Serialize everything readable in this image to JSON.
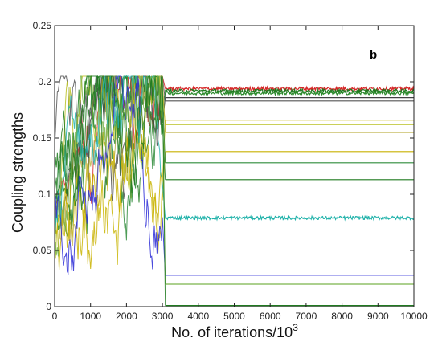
{
  "chart_data": {
    "type": "line",
    "panel_label": "b",
    "xlabel": "No. of iterations/10",
    "xlabel_superscript": "3",
    "ylabel": "Coupling strengths",
    "xlim": [
      0,
      10000
    ],
    "ylim": [
      0,
      0.25
    ],
    "x_ticks": [
      0,
      1000,
      2000,
      3000,
      4000,
      5000,
      6000,
      7000,
      8000,
      9000,
      10000
    ],
    "y_ticks": [
      0,
      0.05,
      0.1,
      0.15,
      0.2,
      0.25
    ],
    "x_tick_labels": [
      "0",
      "1000",
      "2000",
      "3000",
      "4000",
      "5000",
      "6000",
      "7000",
      "8000",
      "9000",
      "10000"
    ],
    "y_tick_labels": [
      "0",
      "0.05",
      "0.1",
      "0.15",
      "0.2",
      "0.25"
    ],
    "grid": false,
    "legend": "none",
    "transition_x": 3000,
    "steady_state_levels": [
      {
        "value": 0.194,
        "color": "#d62728",
        "noisy": true
      },
      {
        "value": 0.192,
        "color": "#1f7a1f",
        "noisy": true
      },
      {
        "value": 0.19,
        "color": "#2a8a2a",
        "noisy": true
      },
      {
        "value": 0.186,
        "color": "#444444",
        "noisy": false
      },
      {
        "value": 0.183,
        "color": "#555555",
        "noisy": false
      },
      {
        "value": 0.166,
        "color": "#c8b400",
        "noisy": false
      },
      {
        "value": 0.162,
        "color": "#b8c020",
        "noisy": false
      },
      {
        "value": 0.155,
        "color": "#bfb24a",
        "noisy": false
      },
      {
        "value": 0.138,
        "color": "#c9b100",
        "noisy": false
      },
      {
        "value": 0.128,
        "color": "#2e8b3a",
        "noisy": false
      },
      {
        "value": 0.113,
        "color": "#1f7a1f",
        "noisy": false
      },
      {
        "value": 0.079,
        "color": "#20b2aa",
        "noisy": true
      },
      {
        "value": 0.028,
        "color": "#2a2ad6",
        "noisy": false
      },
      {
        "value": 0.02,
        "color": "#7ab34a",
        "noisy": false
      },
      {
        "value": 0.001,
        "color": "#1f7a1f",
        "noisy": false
      }
    ]
  }
}
